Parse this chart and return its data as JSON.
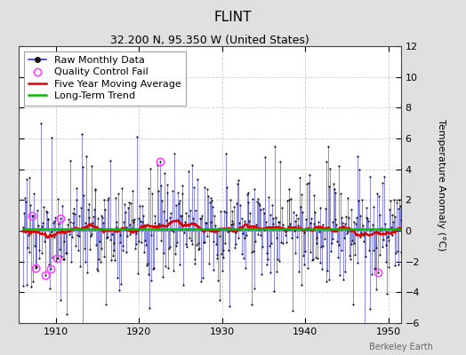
{
  "title": "FLINT",
  "subtitle": "32.200 N, 95.350 W (United States)",
  "ylabel": "Temperature Anomaly (°C)",
  "watermark": "Berkeley Earth",
  "ylim": [
    -6,
    12
  ],
  "yticks": [
    -6,
    -4,
    -2,
    0,
    2,
    4,
    6,
    8,
    10,
    12
  ],
  "xlim": [
    1905.5,
    1951.5
  ],
  "xticks": [
    1910,
    1920,
    1930,
    1940,
    1950
  ],
  "bg_color": "#e0e0e0",
  "plot_bg_color": "#ffffff",
  "raw_line_color": "#3333cc",
  "raw_dot_color": "#111111",
  "qc_fail_color": "#ff44ff",
  "moving_avg_color": "#dd0000",
  "trend_color": "#00bb00",
  "seed": 17,
  "n_months": 552,
  "start_year": 1906,
  "start_month": 1,
  "legend_fontsize": 8,
  "title_fontsize": 11,
  "subtitle_fontsize": 9,
  "tick_fontsize": 8
}
